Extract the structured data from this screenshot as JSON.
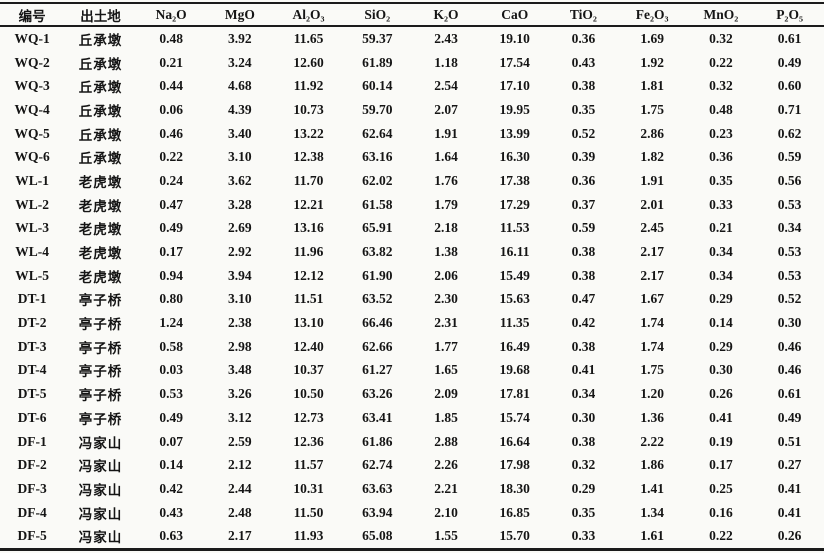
{
  "table": {
    "columns": [
      "编号",
      "出土地",
      "Na₂O",
      "MgO",
      "Al₂O₃",
      "SiO₂",
      "K₂O",
      "CaO",
      "TiO₂",
      "Fe₂O₃",
      "MnO₂",
      "P₂O₅"
    ],
    "rows": [
      [
        "WQ-1",
        "丘承墩",
        "0.48",
        "3.92",
        "11.65",
        "59.37",
        "2.43",
        "19.10",
        "0.36",
        "1.69",
        "0.32",
        "0.61"
      ],
      [
        "WQ-2",
        "丘承墩",
        "0.21",
        "3.24",
        "12.60",
        "61.89",
        "1.18",
        "17.54",
        "0.43",
        "1.92",
        "0.22",
        "0.49"
      ],
      [
        "WQ-3",
        "丘承墩",
        "0.44",
        "4.68",
        "11.92",
        "60.14",
        "2.54",
        "17.10",
        "0.38",
        "1.81",
        "0.32",
        "0.60"
      ],
      [
        "WQ-4",
        "丘承墩",
        "0.06",
        "4.39",
        "10.73",
        "59.70",
        "2.07",
        "19.95",
        "0.35",
        "1.75",
        "0.48",
        "0.71"
      ],
      [
        "WQ-5",
        "丘承墩",
        "0.46",
        "3.40",
        "13.22",
        "62.64",
        "1.91",
        "13.99",
        "0.52",
        "2.86",
        "0.23",
        "0.62"
      ],
      [
        "WQ-6",
        "丘承墩",
        "0.22",
        "3.10",
        "12.38",
        "63.16",
        "1.64",
        "16.30",
        "0.39",
        "1.82",
        "0.36",
        "0.59"
      ],
      [
        "WL-1",
        "老虎墩",
        "0.24",
        "3.62",
        "11.70",
        "62.02",
        "1.76",
        "17.38",
        "0.36",
        "1.91",
        "0.35",
        "0.56"
      ],
      [
        "WL-2",
        "老虎墩",
        "0.47",
        "3.28",
        "12.21",
        "61.58",
        "1.79",
        "17.29",
        "0.37",
        "2.01",
        "0.33",
        "0.53"
      ],
      [
        "WL-3",
        "老虎墩",
        "0.49",
        "2.69",
        "13.16",
        "65.91",
        "2.18",
        "11.53",
        "0.59",
        "2.45",
        "0.21",
        "0.34"
      ],
      [
        "WL-4",
        "老虎墩",
        "0.17",
        "2.92",
        "11.96",
        "63.82",
        "1.38",
        "16.11",
        "0.38",
        "2.17",
        "0.34",
        "0.53"
      ],
      [
        "WL-5",
        "老虎墩",
        "0.94",
        "3.94",
        "12.12",
        "61.90",
        "2.06",
        "15.49",
        "0.38",
        "2.17",
        "0.34",
        "0.53"
      ],
      [
        "DT-1",
        "亭子桥",
        "0.80",
        "3.10",
        "11.51",
        "63.52",
        "2.30",
        "15.63",
        "0.47",
        "1.67",
        "0.29",
        "0.52"
      ],
      [
        "DT-2",
        "亭子桥",
        "1.24",
        "2.38",
        "13.10",
        "66.46",
        "2.31",
        "11.35",
        "0.42",
        "1.74",
        "0.14",
        "0.30"
      ],
      [
        "DT-3",
        "亭子桥",
        "0.58",
        "2.98",
        "12.40",
        "62.66",
        "1.77",
        "16.49",
        "0.38",
        "1.74",
        "0.29",
        "0.46"
      ],
      [
        "DT-4",
        "亭子桥",
        "0.03",
        "3.48",
        "10.37",
        "61.27",
        "1.65",
        "19.68",
        "0.41",
        "1.75",
        "0.30",
        "0.46"
      ],
      [
        "DT-5",
        "亭子桥",
        "0.53",
        "3.26",
        "10.50",
        "63.26",
        "2.09",
        "17.81",
        "0.34",
        "1.20",
        "0.26",
        "0.61"
      ],
      [
        "DT-6",
        "亭子桥",
        "0.49",
        "3.12",
        "12.73",
        "63.41",
        "1.85",
        "15.74",
        "0.30",
        "1.36",
        "0.41",
        "0.49"
      ],
      [
        "DF-1",
        "冯家山",
        "0.07",
        "2.59",
        "12.36",
        "61.86",
        "2.88",
        "16.64",
        "0.38",
        "2.22",
        "0.19",
        "0.51"
      ],
      [
        "DF-2",
        "冯家山",
        "0.14",
        "2.12",
        "11.57",
        "62.74",
        "2.26",
        "17.98",
        "0.32",
        "1.86",
        "0.17",
        "0.27"
      ],
      [
        "DF-3",
        "冯家山",
        "0.42",
        "2.44",
        "10.31",
        "63.63",
        "2.21",
        "18.30",
        "0.29",
        "1.41",
        "0.25",
        "0.41"
      ],
      [
        "DF-4",
        "冯家山",
        "0.43",
        "2.48",
        "11.50",
        "63.94",
        "2.10",
        "16.85",
        "0.35",
        "1.34",
        "0.16",
        "0.41"
      ],
      [
        "DF-5",
        "冯家山",
        "0.63",
        "2.17",
        "11.93",
        "65.08",
        "1.55",
        "15.70",
        "0.33",
        "1.61",
        "0.22",
        "0.26"
      ]
    ]
  },
  "colors": {
    "paper": "#fafaf7",
    "rule": "#1b1b1b",
    "text": "#151515"
  }
}
